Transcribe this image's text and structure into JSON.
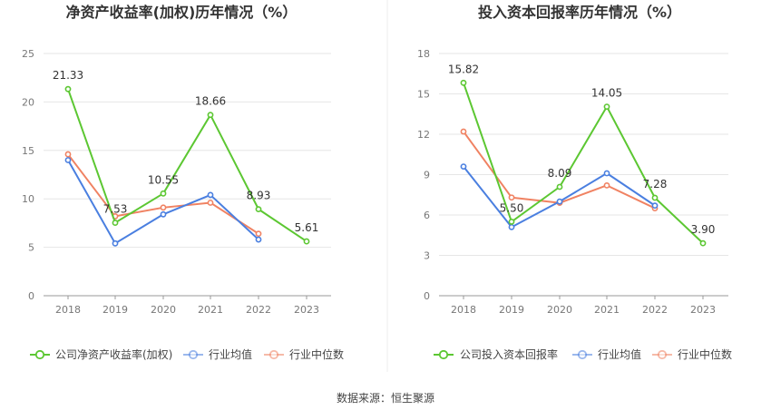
{
  "source_label": "数据来源：恒生聚源",
  "chart_data": [
    {
      "type": "line",
      "title": "净资产收益率(加权)历年情况（%）",
      "categories": [
        "2018",
        "2019",
        "2020",
        "2021",
        "2022",
        "2023"
      ],
      "ylim": [
        0,
        25
      ],
      "yticks": [
        0,
        5,
        10,
        15,
        20,
        25
      ],
      "grid": true,
      "legend_position": "bottom",
      "series": [
        {
          "name": "公司净资产收益率(加权)",
          "color": "#5cc732",
          "values": [
            21.33,
            7.53,
            10.55,
            18.66,
            8.93,
            5.61
          ],
          "labels": [
            "21.33",
            "7.53",
            "10.55",
            "18.66",
            "8.93",
            "5.61"
          ]
        },
        {
          "name": "行业均值",
          "color": "#4a7fe0",
          "values": [
            14.0,
            5.4,
            8.4,
            10.4,
            5.8,
            null
          ]
        },
        {
          "name": "行业中位数",
          "color": "#f08262",
          "values": [
            14.6,
            8.2,
            9.1,
            9.6,
            6.4,
            null
          ]
        }
      ]
    },
    {
      "type": "line",
      "title": "投入资本回报率历年情况（%）",
      "categories": [
        "2018",
        "2019",
        "2020",
        "2021",
        "2022",
        "2023"
      ],
      "ylim": [
        0,
        18
      ],
      "yticks": [
        0,
        3,
        6,
        9,
        12,
        15,
        18
      ],
      "grid": true,
      "legend_position": "bottom",
      "series": [
        {
          "name": "公司投入资本回报率",
          "color": "#5cc732",
          "values": [
            15.82,
            5.5,
            8.09,
            14.05,
            7.28,
            3.9
          ],
          "labels": [
            "15.82",
            "5.50",
            "8.09",
            "14.05",
            "7.28",
            "3.90"
          ]
        },
        {
          "name": "行业均值",
          "color": "#4a7fe0",
          "values": [
            9.6,
            5.1,
            7.0,
            9.1,
            6.7,
            null
          ]
        },
        {
          "name": "行业中位数",
          "color": "#f08262",
          "values": [
            12.2,
            7.3,
            6.9,
            8.2,
            6.5,
            null
          ]
        }
      ]
    }
  ]
}
